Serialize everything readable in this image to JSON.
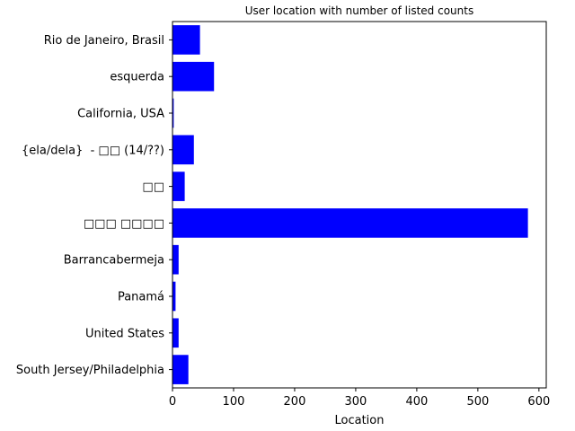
{
  "chart_data": {
    "type": "bar",
    "orientation": "horizontal",
    "title": "User location with number of listed counts",
    "xlabel": "Location",
    "ylabel": "",
    "categories": [
      "Rio de Janeiro, Brasil",
      "esquerda",
      "California, USA",
      "{ela/dela}  - □□ (14/??)",
      "□□",
      "□□□ □□□□",
      "Barrancabermeja",
      "Panamá",
      "United States",
      "South Jersey/Philadelphia"
    ],
    "values": [
      45,
      68,
      2,
      35,
      20,
      582,
      10,
      5,
      10,
      26
    ],
    "xlim": [
      0,
      612
    ],
    "xticks": [
      0,
      100,
      200,
      300,
      400,
      500,
      600
    ],
    "bar_color": "#0000ff",
    "grid": false
  }
}
